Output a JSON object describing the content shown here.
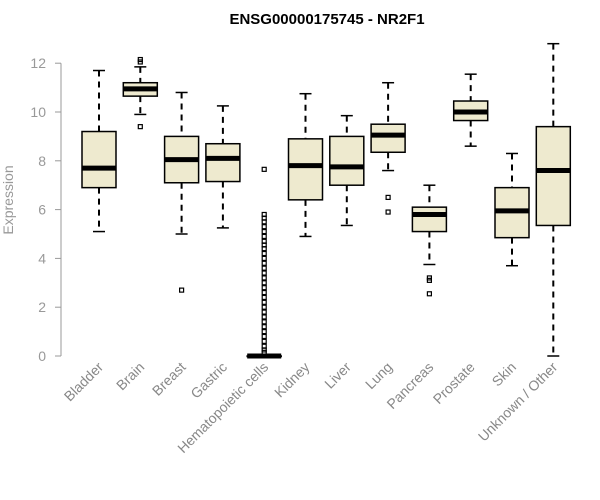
{
  "chart_data": {
    "type": "boxplot",
    "title": "ENSG00000175745 - NR2F1",
    "xlabel": "",
    "ylabel": "Expression",
    "ylim": [
      0,
      12
    ],
    "yticks": [
      0,
      2,
      4,
      6,
      8,
      10,
      12
    ],
    "box_fill": "#eeeacf",
    "median_color": "#000000",
    "categories": [
      "Bladder",
      "Brain",
      "Breast",
      "Gastric",
      "Hematopoietic cells",
      "Kidney",
      "Liver",
      "Lung",
      "Pancreas",
      "Prostate",
      "Skin",
      "Unknown / Other"
    ],
    "boxes": [
      {
        "whisker_low": 5.1,
        "q1": 6.9,
        "median": 7.7,
        "q3": 9.2,
        "whisker_high": 11.7,
        "outliers": []
      },
      {
        "whisker_low": 9.9,
        "q1": 10.65,
        "median": 10.95,
        "q3": 11.2,
        "whisker_high": 11.85,
        "outliers": [
          9.4,
          12.05,
          12.15
        ]
      },
      {
        "whisker_low": 5.0,
        "q1": 7.1,
        "median": 8.05,
        "q3": 9.0,
        "whisker_high": 10.8,
        "outliers": [
          2.7
        ]
      },
      {
        "whisker_low": 5.25,
        "q1": 7.15,
        "median": 8.1,
        "q3": 8.7,
        "whisker_high": 10.25,
        "outliers": []
      },
      {
        "whisker_low": 0.0,
        "q1": 0.0,
        "median": 0.0,
        "q3": 0.0,
        "whisker_high": 0.0,
        "outliers": [
          7.65,
          5.8,
          5.65,
          5.5,
          5.3,
          5.1,
          4.9,
          4.7,
          4.55,
          4.4,
          4.2,
          4.0,
          3.8,
          3.6,
          3.4,
          3.2,
          3.0,
          2.8,
          2.6,
          2.4,
          2.2,
          2.0,
          1.8,
          1.6,
          1.4,
          1.2,
          1.0,
          0.8,
          0.6,
          0.4,
          0.25,
          0.15
        ]
      },
      {
        "whisker_low": 4.9,
        "q1": 6.4,
        "median": 7.8,
        "q3": 8.9,
        "whisker_high": 10.75,
        "outliers": []
      },
      {
        "whisker_low": 5.35,
        "q1": 7.0,
        "median": 7.75,
        "q3": 9.0,
        "whisker_high": 9.85,
        "outliers": []
      },
      {
        "whisker_low": 7.6,
        "q1": 8.35,
        "median": 9.05,
        "q3": 9.5,
        "whisker_high": 11.2,
        "outliers": [
          6.5,
          5.9
        ]
      },
      {
        "whisker_low": 3.75,
        "q1": 5.1,
        "median": 5.8,
        "q3": 6.1,
        "whisker_high": 7.0,
        "outliers": [
          3.2,
          3.1,
          2.55
        ]
      },
      {
        "whisker_low": 8.6,
        "q1": 9.65,
        "median": 10.0,
        "q3": 10.45,
        "whisker_high": 11.55,
        "outliers": []
      },
      {
        "whisker_low": 3.7,
        "q1": 4.85,
        "median": 5.95,
        "q3": 6.9,
        "whisker_high": 8.3,
        "outliers": []
      },
      {
        "whisker_low": 0.0,
        "q1": 5.35,
        "median": 7.6,
        "q3": 9.4,
        "whisker_high": 12.8,
        "outliers": []
      }
    ]
  }
}
